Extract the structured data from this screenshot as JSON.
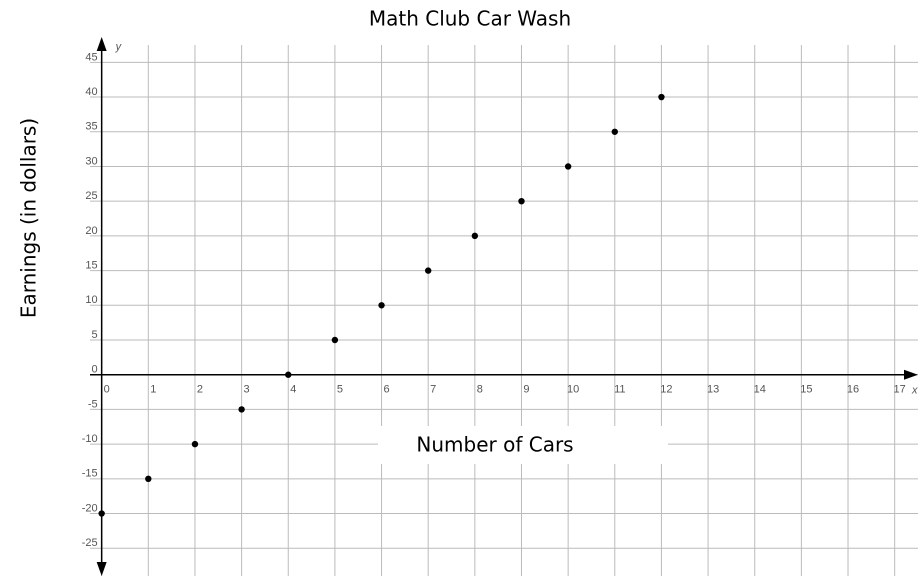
{
  "chart_data": {
    "type": "scatter",
    "title": "Math Club Car Wash",
    "x_label": "Number of Cars",
    "y_label": "Earnings (in dollars)",
    "x_axis_name": "x",
    "y_axis_name": "y",
    "x": [
      0,
      1,
      2,
      3,
      4,
      5,
      6,
      7,
      8,
      9,
      10,
      11,
      12
    ],
    "values": [
      -20,
      -15,
      -10,
      -5,
      0,
      5,
      10,
      15,
      20,
      25,
      30,
      35,
      40
    ],
    "color": "#000000",
    "xlim": [
      -0.25,
      17.5
    ],
    "ylim": [
      -29,
      47.5
    ],
    "xticks": [
      0,
      1,
      2,
      3,
      4,
      5,
      6,
      7,
      8,
      9,
      10,
      11,
      12,
      13,
      14,
      15,
      16,
      17
    ],
    "yticks": [
      -25,
      -20,
      -15,
      -10,
      -5,
      0,
      5,
      10,
      15,
      20,
      25,
      30,
      35,
      40,
      45
    ],
    "grid": true
  }
}
